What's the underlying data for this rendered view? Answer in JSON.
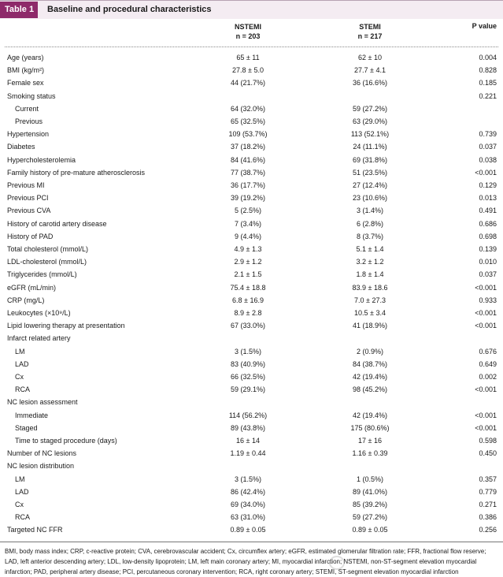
{
  "table": {
    "tag": "Table 1",
    "title": "Baseline and procedural characteristics",
    "headers": {
      "nstemi": "NSTEMI",
      "nstemi_n": "n = 203",
      "stemi": "STEMI",
      "stemi_n": "n = 217",
      "p": "P value"
    },
    "rows": [
      {
        "label": "Age (years)",
        "nstemi": "65 ± 11",
        "stemi": "62 ± 10",
        "p": "0.004"
      },
      {
        "label": "BMI (kg/m²)",
        "nstemi": "27.8 ± 5.0",
        "stemi": "27.7 ± 4.1",
        "p": "0.828"
      },
      {
        "label": "Female sex",
        "nstemi": "44 (21.7%)",
        "stemi": "36 (16.6%)",
        "p": "0.185"
      },
      {
        "label": "Smoking status",
        "nstemi": "",
        "stemi": "",
        "p": "0.221"
      },
      {
        "label": "Current",
        "indent": true,
        "nstemi": "64 (32.0%)",
        "stemi": "59 (27.2%)",
        "p": ""
      },
      {
        "label": "Previous",
        "indent": true,
        "nstemi": "65 (32.5%)",
        "stemi": "63 (29.0%)",
        "p": ""
      },
      {
        "label": "Hypertension",
        "nstemi": "109 (53.7%)",
        "stemi": "113 (52.1%)",
        "p": "0.739"
      },
      {
        "label": "Diabetes",
        "nstemi": "37 (18.2%)",
        "stemi": "24 (11.1%)",
        "p": "0.037"
      },
      {
        "label": "Hypercholesterolemia",
        "nstemi": "84 (41.6%)",
        "stemi": "69 (31.8%)",
        "p": "0.038"
      },
      {
        "label": "Family history of pre-mature atherosclerosis",
        "nstemi": "77 (38.7%)",
        "stemi": "51 (23.5%)",
        "p": "<0.001"
      },
      {
        "label": "Previous MI",
        "nstemi": "36 (17.7%)",
        "stemi": "27 (12.4%)",
        "p": "0.129"
      },
      {
        "label": "Previous PCI",
        "nstemi": "39 (19.2%)",
        "stemi": "23 (10.6%)",
        "p": "0.013"
      },
      {
        "label": "Previous CVA",
        "nstemi": "5 (2.5%)",
        "stemi": "3 (1.4%)",
        "p": "0.491"
      },
      {
        "label": "History of carotid artery disease",
        "nstemi": "7 (3.4%)",
        "stemi": "6 (2.8%)",
        "p": "0.686"
      },
      {
        "label": "History of PAD",
        "nstemi": "9 (4.4%)",
        "stemi": "8 (3.7%)",
        "p": "0.698"
      },
      {
        "label": "Total cholesterol (mmol/L)",
        "nstemi": "4.9 ± 1.3",
        "stemi": "5.1 ± 1.4",
        "p": "0.139"
      },
      {
        "label": "LDL-cholesterol (mmol/L)",
        "nstemi": "2.9 ± 1.2",
        "stemi": "3.2 ± 1.2",
        "p": "0.010"
      },
      {
        "label": "Triglycerides (mmol/L)",
        "nstemi": "2.1 ± 1.5",
        "stemi": "1.8 ± 1.4",
        "p": "0.037"
      },
      {
        "label": "eGFR (mL/min)",
        "nstemi": "75.4 ± 18.8",
        "stemi": "83.9 ± 18.6",
        "p": "<0.001"
      },
      {
        "label": "CRP (mg/L)",
        "nstemi": "6.8 ± 16.9",
        "stemi": "7.0 ± 27.3",
        "p": "0.933"
      },
      {
        "label": "Leukocytes (×10⁹/L)",
        "nstemi": "8.9 ± 2.8",
        "stemi": "10.5 ± 3.4",
        "p": "<0.001"
      },
      {
        "label": "Lipid lowering therapy at presentation",
        "nstemi": "67 (33.0%)",
        "stemi": "41 (18.9%)",
        "p": "<0.001"
      },
      {
        "label": "Infarct related artery",
        "nstemi": "",
        "stemi": "",
        "p": ""
      },
      {
        "label": "LM",
        "indent": true,
        "nstemi": "3 (1.5%)",
        "stemi": "2 (0.9%)",
        "p": "0.676"
      },
      {
        "label": "LAD",
        "indent": true,
        "nstemi": "83 (40.9%)",
        "stemi": "84 (38.7%)",
        "p": "0.649"
      },
      {
        "label": "Cx",
        "indent": true,
        "nstemi": "66 (32.5%)",
        "stemi": "42 (19.4%)",
        "p": "0.002"
      },
      {
        "label": "RCA",
        "indent": true,
        "nstemi": "59 (29.1%)",
        "stemi": "98 (45.2%)",
        "p": "<0.001"
      },
      {
        "label": "NC lesion assessment",
        "nstemi": "",
        "stemi": "",
        "p": ""
      },
      {
        "label": "Immediate",
        "indent": true,
        "nstemi": "114 (56.2%)",
        "stemi": "42 (19.4%)",
        "p": "<0.001"
      },
      {
        "label": "Staged",
        "indent": true,
        "nstemi": "89 (43.8%)",
        "stemi": "175 (80.6%)",
        "p": "<0.001"
      },
      {
        "label": "Time to staged procedure (days)",
        "indent": true,
        "nstemi": "16 ± 14",
        "stemi": "17 ± 16",
        "p": "0.598"
      },
      {
        "label": "Number of NC lesions",
        "nstemi": "1.19 ± 0.44",
        "stemi": "1.16 ± 0.39",
        "p": "0.450"
      },
      {
        "label": "NC lesion distribution",
        "nstemi": "",
        "stemi": "",
        "p": ""
      },
      {
        "label": "LM",
        "indent": true,
        "nstemi": "3 (1.5%)",
        "stemi": "1 (0.5%)",
        "p": "0.357"
      },
      {
        "label": "LAD",
        "indent": true,
        "nstemi": "86 (42.4%)",
        "stemi": "89 (41.0%)",
        "p": "0.779"
      },
      {
        "label": "Cx",
        "indent": true,
        "nstemi": "69 (34.0%)",
        "stemi": "85 (39.2%)",
        "p": "0.271"
      },
      {
        "label": "RCA",
        "indent": true,
        "nstemi": "63 (31.0%)",
        "stemi": "59 (27.2%)",
        "p": "0.386"
      },
      {
        "label": "Targeted NC FFR",
        "nstemi": "0.89 ± 0.05",
        "stemi": "0.89 ± 0.05",
        "p": "0.256"
      }
    ],
    "footnote": "BMI, body mass index; CRP, c-reactive protein; CVA, cerebrovascular accident; Cx, circumflex artery; eGFR, estimated glomerular filtration rate; FFR, fractional flow reserve; LAD, left anterior descending artery; LDL, low-density lipoprotein; LM, left main coronary artery; MI, myocardial infarction; NSTEMI, non-ST-segment elevation myocardial infarction; PAD, peripheral artery disease; PCI, percutaneous coronary intervention; RCA, right coronary artery; STEMI, ST-segment elevation myocardial infarction"
  }
}
